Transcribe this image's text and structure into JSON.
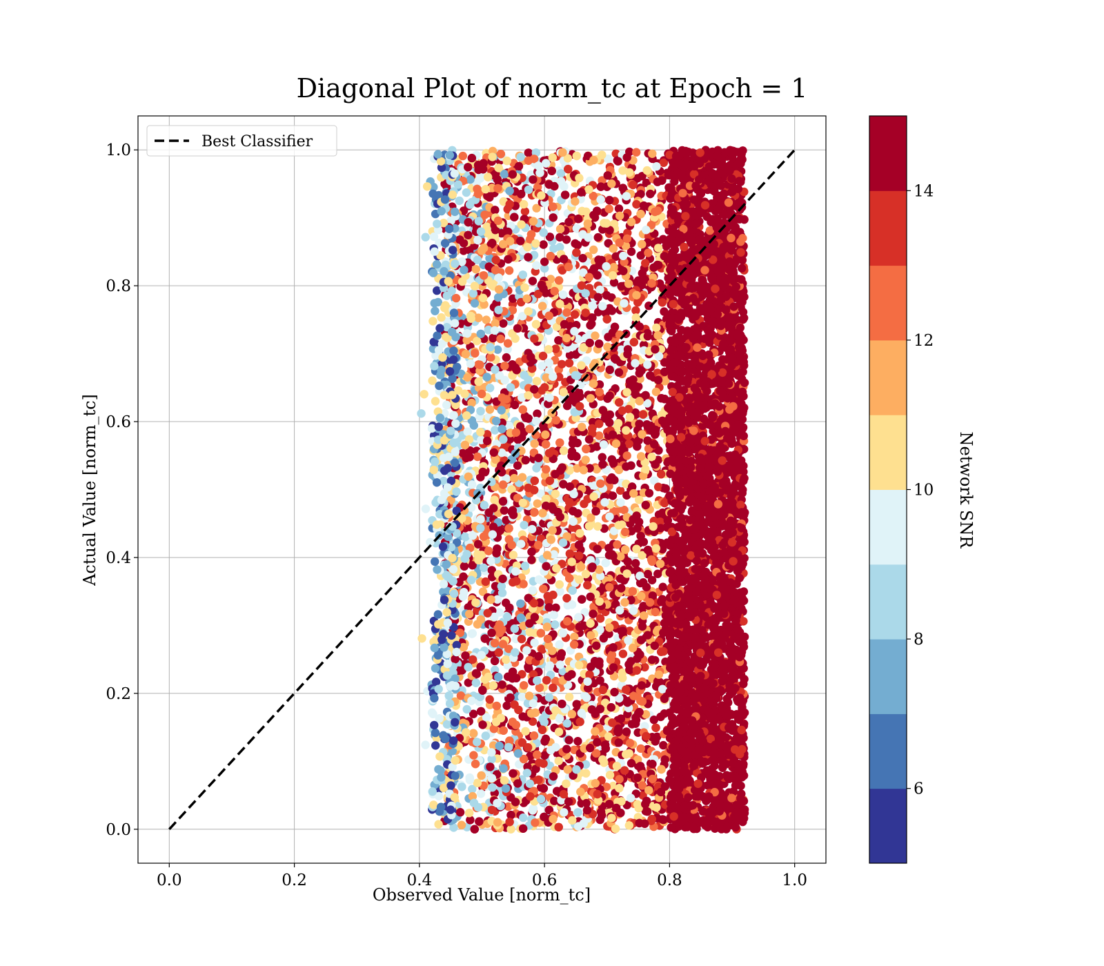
{
  "chart_data": {
    "type": "scatter",
    "title": "Diagonal Plot of norm_tc at Epoch = 1",
    "xlabel": "Observed Value [norm_tc]",
    "ylabel": "Actual Value [norm_tc]",
    "xlim": [
      -0.05,
      1.05
    ],
    "ylim": [
      -0.05,
      1.05
    ],
    "xticks": [
      "0.0",
      "0.2",
      "0.4",
      "0.6",
      "0.8",
      "1.0"
    ],
    "yticks": [
      "0.0",
      "0.2",
      "0.4",
      "0.6",
      "0.8",
      "1.0"
    ],
    "grid": true,
    "legend": {
      "position": "upper-left",
      "entries": [
        {
          "label": "Best Classifier",
          "style": "dashed",
          "color": "#000000"
        }
      ]
    },
    "reference_line": {
      "name": "Best Classifier",
      "x": [
        0.0,
        1.0
      ],
      "y": [
        0.0,
        1.0
      ]
    },
    "point_cloud": {
      "x_range": [
        0.42,
        0.92
      ],
      "y_range": [
        0.0,
        1.0
      ],
      "dense_high_snr_region_x": [
        0.8,
        0.92
      ],
      "color_by": "Network SNR"
    },
    "colorbar": {
      "label": "Network SNR",
      "range": [
        5,
        15
      ],
      "ticks": [
        "6",
        "8",
        "10",
        "12",
        "14"
      ],
      "levels": [
        {
          "from": 5,
          "to": 6,
          "color": "#313695"
        },
        {
          "from": 6,
          "to": 7,
          "color": "#4575b4"
        },
        {
          "from": 7,
          "to": 8,
          "color": "#74add1"
        },
        {
          "from": 8,
          "to": 9,
          "color": "#abd9e9"
        },
        {
          "from": 9,
          "to": 10,
          "color": "#e0f3f8"
        },
        {
          "from": 10,
          "to": 11,
          "color": "#fee090"
        },
        {
          "from": 11,
          "to": 12,
          "color": "#fdae61"
        },
        {
          "from": 12,
          "to": 13,
          "color": "#f46d43"
        },
        {
          "from": 13,
          "to": 14,
          "color": "#d73027"
        },
        {
          "from": 14,
          "to": 15,
          "color": "#a50026"
        }
      ]
    }
  }
}
